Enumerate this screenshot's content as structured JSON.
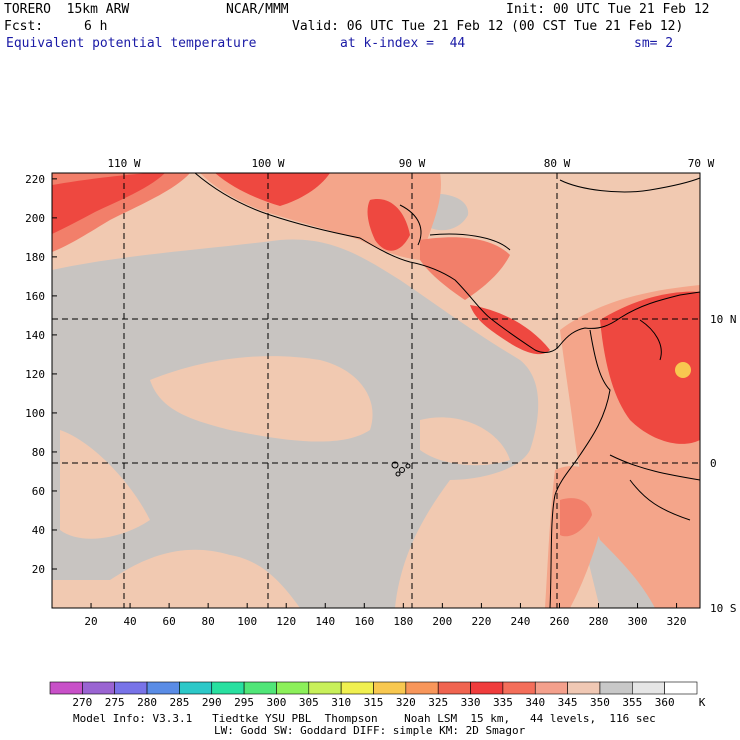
{
  "header": {
    "model": "TORERO  15km ARW",
    "org": "NCAR/MMM",
    "init": "Init: 00 UTC Tue 21 Feb 12",
    "fcst_label": "Fcst:",
    "fcst_value": "6 h",
    "valid": "Valid: 06 UTC Tue 21 Feb 12 (00 CST Tue 21 Feb 12)",
    "field": "Equivalent potential temperature",
    "level": "at k-index =  44",
    "smoothing": "sm= 2"
  },
  "map": {
    "lon_labels": [
      "110 W",
      "100 W",
      "90 W",
      "80 W",
      "70 W"
    ],
    "lat_labels": [
      "10 N",
      "0",
      "10 S"
    ],
    "y_ticks": [
      "220",
      "200",
      "180",
      "160",
      "140",
      "120",
      "100",
      "80",
      "60",
      "40",
      "20"
    ],
    "x_ticks": [
      "20",
      "40",
      "60",
      "80",
      "100",
      "120",
      "140",
      "160",
      "180",
      "200",
      "220",
      "240",
      "260",
      "280",
      "300",
      "320"
    ],
    "background_color": "#f1c9b1",
    "land_colors": {
      "cool": "#c8c4c1",
      "warm": "#f4a58a",
      "hot": "#ee4840",
      "hotter": "#f27f6a"
    }
  },
  "colorbar": {
    "labels": [
      "270",
      "275",
      "280",
      "285",
      "290",
      "295",
      "300",
      "305",
      "310",
      "315",
      "320",
      "325",
      "330",
      "335",
      "340",
      "345",
      "350",
      "355",
      "360"
    ],
    "unit": "K",
    "colors": [
      "#c850c8",
      "#9a64d2",
      "#7873e8",
      "#5a8ce6",
      "#2cc8c8",
      "#28e0a0",
      "#50e678",
      "#8cf05a",
      "#c8f05a",
      "#f0f050",
      "#f8c850",
      "#f8965a",
      "#f06450",
      "#f03c3c",
      "#f46e5a",
      "#f4a08c",
      "#f0c8b4",
      "#c8c8c8",
      "#e6e6e6",
      "#ffffff"
    ]
  },
  "footer": {
    "line1": "Model Info: V3.3.1   Tiedtke YSU PBL  Thompson    Noah LSM  15 km,   44 levels,  116 sec",
    "line2": "LW: Godd SW: Goddard DIFF: simple KM: 2D Smagor"
  }
}
